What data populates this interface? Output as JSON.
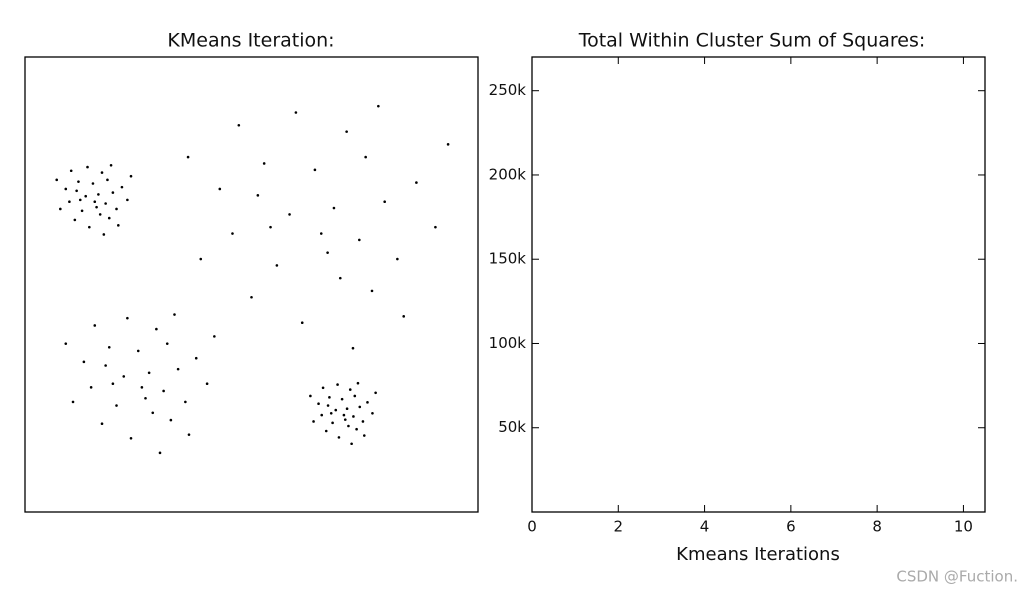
{
  "chart_data": [
    {
      "type": "scatter",
      "title": "KMeans Iteration:",
      "color": "#000000",
      "xlim": [
        0,
        100
      ],
      "ylim": [
        0,
        100
      ],
      "x": [
        15.8,
        19.4,
        11.8,
        17,
        9.8,
        18.6,
        13.4,
        21.4,
        11,
        15,
        17.8,
        12.6,
        20.2,
        9,
        16.2,
        14.2,
        18.2,
        11.4,
        22.6,
        13.8,
        16.6,
        7.8,
        19,
        12.2,
        15.4,
        23.4,
        7,
        17.4,
        10.2,
        20.6,
        66.8,
        79.4,
        52.8,
        71,
        45.8,
        76.6,
        58.4,
        86.4,
        50,
        64,
        73.8,
        55.6,
        82.2,
        43,
        68.2,
        61.2,
        75.2,
        51.4,
        90.6,
        59.8,
        69.6,
        38.8,
        78,
        54.2,
        65.4,
        93.4,
        36,
        72.4,
        47.2,
        83.6,
        26.6,
        33.8,
        18.6,
        29,
        14.6,
        32.2,
        21.8,
        37.8,
        17,
        25,
        30.6,
        20.2,
        35.4,
        13,
        27.4,
        23.4,
        31.4,
        17.8,
        40.2,
        22.6,
        28.2,
        10.6,
        33,
        19.4,
        25.8,
        41.8,
        9,
        29.8,
        15.4,
        36.2,
        70.7,
        73.9,
        67.2,
        71.8,
        65.5,
        73.2,
        68.6,
        75.6,
        66.5,
        70,
        72.5,
        67.9,
        74.6,
        64.8,
        71.1,
        69.3,
        72.8,
        66.9,
        76.7,
        69,
        71.4,
        63.7,
        73.5,
        67.6,
        70.4,
        77.4,
        63,
        72.1,
        65.8,
        74.9
      ],
      "values": [
        67,
        70.2,
        72.6,
        74.6,
        68.2,
        64.6,
        69.4,
        71.4,
        64.2,
        72.2,
        67.8,
        66.2,
        66.6,
        71,
        69.8,
        62.6,
        73,
        70.6,
        68.6,
        75.8,
        65.4,
        66.6,
        76.2,
        68.6,
        68.2,
        73.8,
        73,
        61,
        75,
        63,
        57,
        68.2,
        76.6,
        83.6,
        61.2,
        48.6,
        65.4,
        72.4,
        47.2,
        75.2,
        59.8,
        54.2,
        55.6,
        71,
        66.8,
        41.6,
        78,
        69.6,
        62.6,
        87.8,
        51.4,
        55.6,
        89.2,
        62.6,
        61.2,
        80.8,
        78,
        36,
        85,
        43,
        25,
        31.4,
        36.2,
        40.2,
        27.4,
        20.2,
        29.8,
        33.8,
        19.4,
        35.4,
        26.6,
        23.4,
        24.2,
        33,
        30.6,
        16.2,
        37,
        32.2,
        28.2,
        42.6,
        21.8,
        24.2,
        43.4,
        28.2,
        27.4,
        38.6,
        37,
        13,
        41,
        17,
        20.3,
        23.1,
        25.2,
        26.9,
        21.3,
        18.2,
        22.4,
        24.1,
        17.8,
        24.8,
        21,
        19.6,
        19.9,
        23.8,
        22.7,
        16.4,
        25.5,
        23.4,
        21.7,
        28,
        18.9,
        19.9,
        28.3,
        21.7,
        21.3,
        26.2,
        25.5,
        15,
        27.3,
        16.8
      ]
    },
    {
      "type": "line",
      "title": "Total Within Cluster Sum of Squares:",
      "x_label": "Kmeans Iterations",
      "xlim": [
        0,
        10.5
      ],
      "xticks": [
        0,
        2,
        4,
        6,
        8,
        10
      ],
      "ylim": [
        0,
        270000
      ],
      "yticks": [
        {
          "value": 50000,
          "label": "50k"
        },
        {
          "value": 100000,
          "label": "100k"
        },
        {
          "value": 150000,
          "label": "150k"
        },
        {
          "value": 200000,
          "label": "200k"
        },
        {
          "value": 250000,
          "label": "250k"
        }
      ]
    }
  ],
  "watermark": "CSDN @Fuction."
}
